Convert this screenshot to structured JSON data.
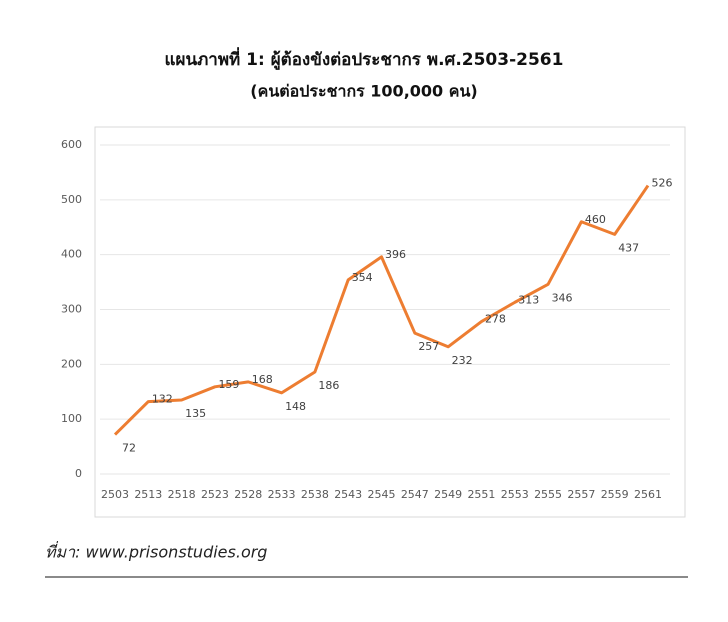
{
  "chart_data": {
    "type": "line",
    "title": "แผนภาพที่ 1: ผู้ต้องขังต่อประชากร พ.ศ.2503-2561",
    "subtitle": "(คนต่อประชากร 100,000 คน)",
    "categories": [
      "2503",
      "2513",
      "2518",
      "2523",
      "2528",
      "2533",
      "2538",
      "2543",
      "2545",
      "2547",
      "2549",
      "2551",
      "2553",
      "2555",
      "2557",
      "2559",
      "2561"
    ],
    "values": [
      72,
      132,
      135,
      159,
      168,
      148,
      186,
      354,
      396,
      257,
      232,
      278,
      313,
      346,
      460,
      437,
      526
    ],
    "color": "#ed7d31",
    "ylim": [
      0,
      600
    ],
    "yticks": [
      0,
      100,
      200,
      300,
      400,
      500,
      600
    ],
    "grid": true,
    "source": "ที่มา: www.prisonstudies.org"
  }
}
